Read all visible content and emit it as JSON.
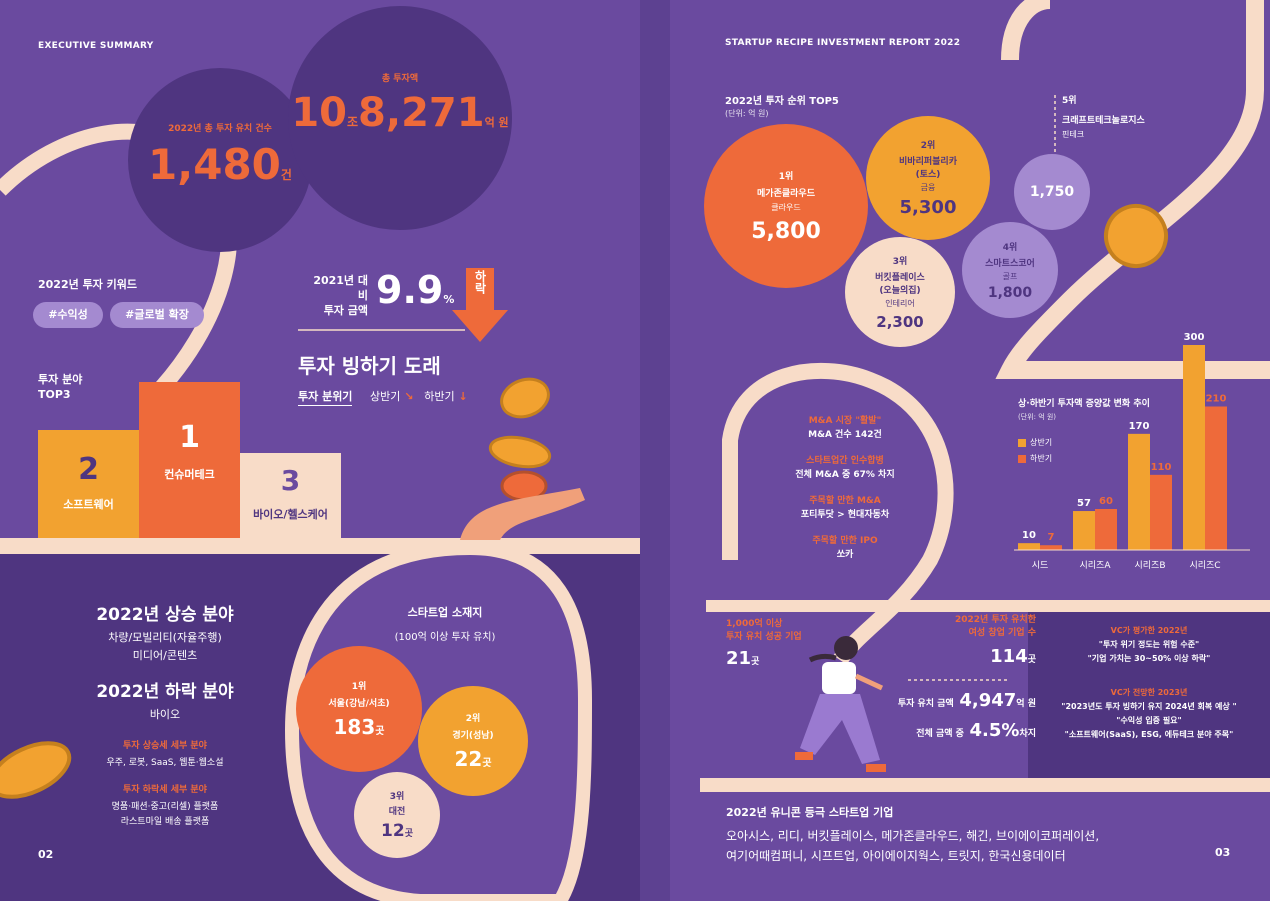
{
  "left": {
    "header": "EXECUTIVE SUMMARY",
    "page_no": "02",
    "count": {
      "label": "2022년 총 투자 유치 건수",
      "value": "1,480",
      "unit": "건"
    },
    "total": {
      "label": "총 투자액",
      "v1": "10",
      "u1": "조",
      "v2": "8,271",
      "u2": "억 원"
    },
    "keywords": {
      "title": "2022년 투자 키워드",
      "k1": "#수익성",
      "k2": "#글로벌 확장"
    },
    "compare": {
      "label1": "2021년 대비",
      "label2": "투자 금액",
      "value": "9.9",
      "unit": "%",
      "down": "하락"
    },
    "chill": {
      "title": "투자 빙하기 도래",
      "mood": "투자 분위기",
      "h1": "상반기",
      "h2": "하반기"
    },
    "top3": {
      "title1": "투자 분야",
      "title2": "TOP3",
      "r1": {
        "rank": "1",
        "name": "컨슈머테크"
      },
      "r2": {
        "rank": "2",
        "name": "소프트웨어"
      },
      "r3": {
        "rank": "3",
        "name": "바이오/헬스케어"
      }
    },
    "trends": {
      "up_title": "2022년 상승 분야",
      "up1": "차량/모빌리티(자율주행)",
      "up2": "미디어/콘텐츠",
      "down_title": "2022년 하락 분야",
      "down1": "바이오",
      "up_detail_title": "투자 상승세 세부 분야",
      "up_detail": "우주, 로봇, SaaS, 웹툰·웹소설",
      "down_detail_title": "투자 하락세 세부 분야",
      "down_detail1": "명품·패션·중고(리셀) 플랫폼",
      "down_detail2": "라스트마일 배송 플랫폼"
    },
    "location": {
      "title": "스타트업 소재지",
      "subtitle": "(100억 이상 투자 유치)",
      "l1": {
        "rank": "1위",
        "name": "서울(강남/서초)",
        "value": "183",
        "unit": "곳"
      },
      "l2": {
        "rank": "2위",
        "name": "경기(성남)",
        "value": "22",
        "unit": "곳"
      },
      "l3": {
        "rank": "3위",
        "name": "대전",
        "value": "12",
        "unit": "곳"
      }
    }
  },
  "right": {
    "header": "STARTUP RECIPE INVESTMENT REPORT 2022",
    "page_no": "03",
    "top5": {
      "title": "2022년 투자 순위 TOP5",
      "unit": "(단위: 억 원)",
      "r1": {
        "rank": "1위",
        "name": "메가존클라우드",
        "sector": "클라우드",
        "value": "5,800"
      },
      "r2": {
        "rank": "2위",
        "name1": "비바리퍼블리카",
        "name2": "(토스)",
        "sector": "금융",
        "value": "5,300"
      },
      "r3": {
        "rank": "3위",
        "name1": "버킷플레이스",
        "name2": "(오늘의집)",
        "sector": "인테리어",
        "value": "2,300"
      },
      "r4": {
        "rank": "4위",
        "name": "스마트스코어",
        "sector": "골프",
        "value": "1,800"
      },
      "r5": {
        "rank": "5위",
        "name": "크래프트테크놀로지스",
        "sector": "핀테크",
        "value": "1,750"
      }
    },
    "ma": [
      {
        "title": "M&A 시장 \"활발\"",
        "text": "M&A 건수 142건"
      },
      {
        "title": "스타트업간 인수합병",
        "text": "전체 M&A 중 67% 차지"
      },
      {
        "title": "주목할 만한 M&A",
        "text": "포티투닷 > 현대자동차"
      },
      {
        "title": "주목할 만한 IPO",
        "text": "쏘카"
      }
    ],
    "success": {
      "l1": "1,000억 이상",
      "l2": "투자 유치 성공 기업",
      "value": "21",
      "unit": "곳"
    },
    "female": {
      "l1": "2022년 투자 유치한",
      "l2": "여성 창업 기업 수",
      "value": "114",
      "unit": "곳",
      "amt_label": "투자 유치 금액",
      "amt_value": "4,947",
      "amt_unit": "억 원",
      "share_label": "전체 금액 중",
      "share_value": "4.5%",
      "share_unit": "차지"
    },
    "vc": {
      "t1": "VC가 평가한 2022년",
      "q1": "\"투자 위기 정도는 위험 수준\"",
      "q2": "\"기업 가치는 30~50% 이상 하락\"",
      "t2": "VC가 전망한 2023년",
      "q3": "\"2023년도 투자 빙하기 유지 2024년 회복 예상 \"",
      "q4": "\"수익성 입증 필요\"",
      "q5": "\"소프트웨어(SaaS), ESG, 에듀테크 분야 주목\""
    },
    "unicorn": {
      "title": "2022년 유니콘 등극 스타트업 기업",
      "line1": "오아시스, 리디, 버킷플레이스, 메가존클라우드, 해긴, 브이에이코퍼레이션,",
      "line2": "여기어때컴퍼니, 시프트업, 아이에이지웍스, 트릿지, 한국신용데이터"
    }
  },
  "colors": {
    "purple": "#6a4a9f",
    "dark_purple": "#4f3580",
    "orange": "#ee6a3a",
    "amber": "#f2a230",
    "cream": "#f8dcc8",
    "lilac": "#a48ad0"
  },
  "chart_data": {
    "type": "bar",
    "title": "상·하반기 투자액 증양값 변화 추이",
    "unit_label": "(단위: 억 원)",
    "categories": [
      "시드",
      "시리즈A",
      "시리즈B",
      "시리즈C"
    ],
    "series": [
      {
        "name": "상반기",
        "values": [
          10,
          57,
          170,
          300
        ],
        "color": "#f2a230"
      },
      {
        "name": "하반기",
        "values": [
          7,
          60,
          110,
          210
        ],
        "color": "#ee6a3a"
      }
    ],
    "ylim": [
      0,
      300
    ],
    "legend": "top-left",
    "grid": false
  }
}
